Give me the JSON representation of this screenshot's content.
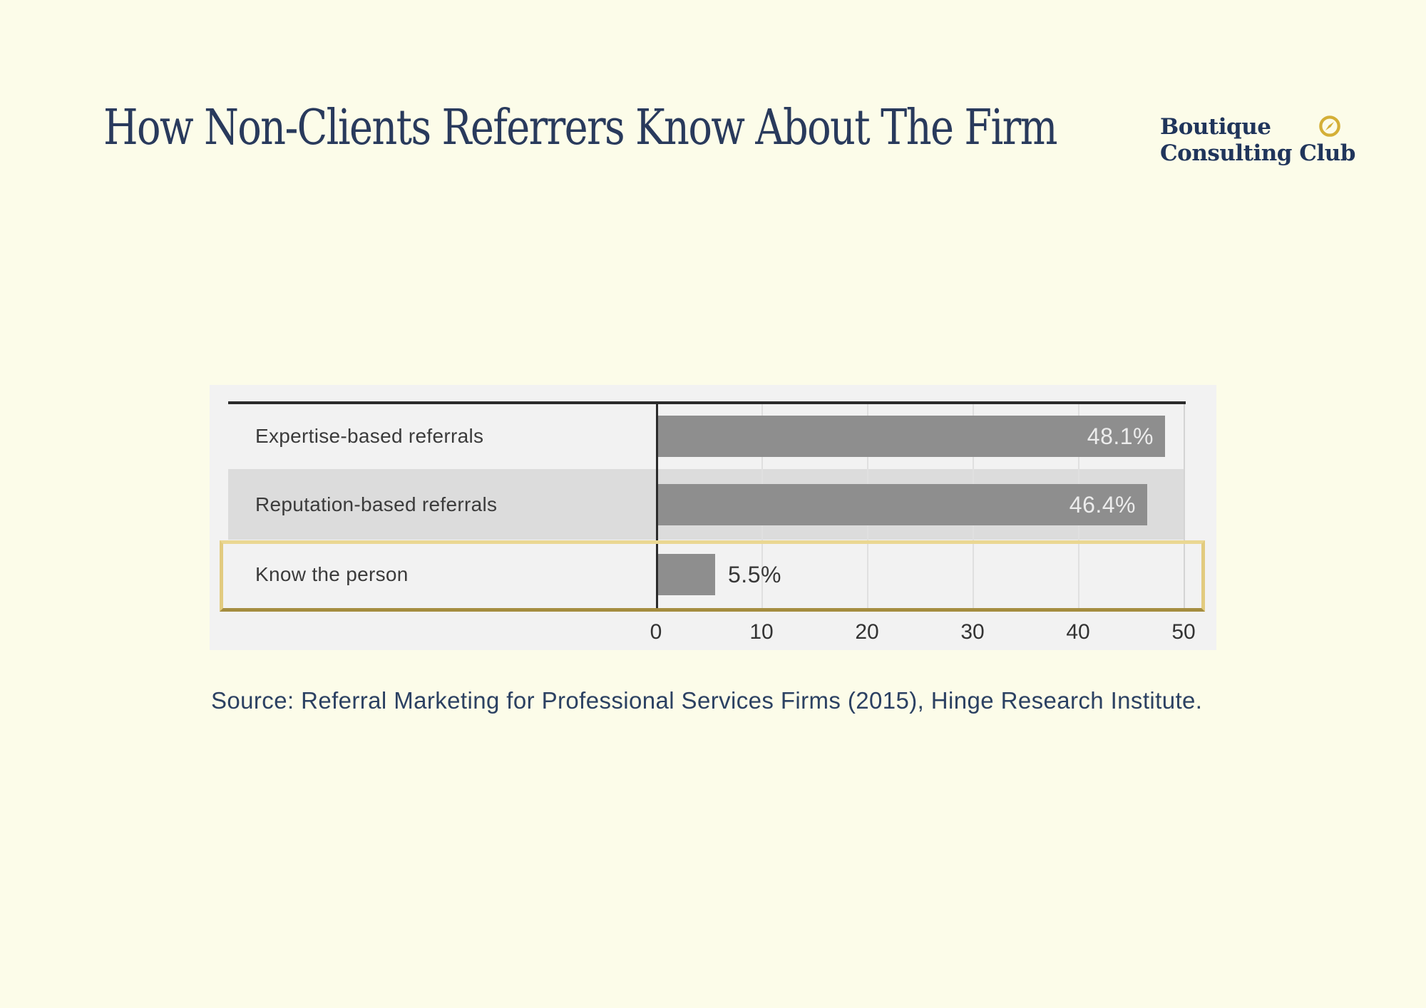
{
  "page": {
    "background_color": "#fcfce9"
  },
  "header": {
    "title": "How Non-Clients Referrers Know About The Firm",
    "title_color": "#293a5c",
    "logo": {
      "line1": "Boutique",
      "line2": "Consulting Club",
      "text_color": "#20355b",
      "icon": "compass-icon",
      "icon_color": "#d4af37"
    }
  },
  "chart_data": {
    "type": "bar",
    "orientation": "horizontal",
    "categories": [
      "Expertise-based referrals",
      "Reputation-based referrals",
      "Know the person"
    ],
    "values": [
      48.1,
      46.4,
      5.5
    ],
    "value_labels": [
      "48.1%",
      "46.4%",
      "5.5%"
    ],
    "xlim": [
      0,
      50
    ],
    "x_ticks": [
      0,
      10,
      20,
      30,
      40,
      50
    ],
    "grid": true,
    "legend": "none",
    "bar_color": "#8e8e8e",
    "row_stripe_color": "#dcdcdc",
    "panel_color": "#f2f2f2",
    "highlighted_category": "Know the person",
    "highlight_border_color": "#e2cb7f"
  },
  "source": {
    "text": "Source: Referral Marketing for Professional Services Firms (2015),  Hinge Research Institute."
  }
}
